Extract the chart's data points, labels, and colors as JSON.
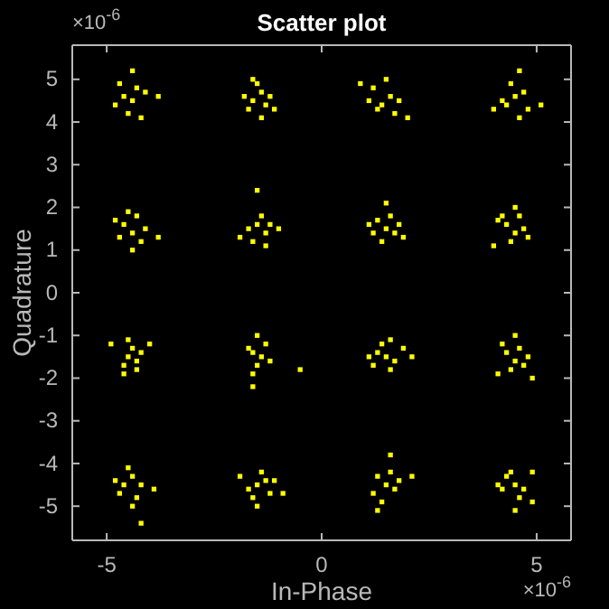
{
  "chart_data": {
    "type": "scatter",
    "title": "Scatter plot",
    "xlabel": "In-Phase",
    "ylabel": "Quadrature",
    "annotations": [
      "×10$^{-6}$",
      "×10$^{-6}$"
    ],
    "xlim": [
      -5.8,
      5.8
    ],
    "ylim": [
      -5.8,
      5.8
    ],
    "xticks": [
      -5,
      0,
      5
    ],
    "yticks": [
      -5,
      -4,
      -3,
      -2,
      -1,
      0,
      1,
      2,
      3,
      4,
      5
    ],
    "grid": false,
    "marker": "square",
    "series": [
      {
        "color": "#ffff00",
        "x": [
          -4.6,
          -4.4,
          -4.8,
          -4.3,
          -4.5,
          -4.1,
          -4.7,
          -4.2,
          -3.8,
          -4.4,
          -1.6,
          -1.4,
          -1.7,
          -1.3,
          -1.5,
          -1.2,
          -1.8,
          -1.4,
          -1.1,
          -1.6,
          1.6,
          1.4,
          1.8,
          1.2,
          1.7,
          1.5,
          1.1,
          2.0,
          0.9,
          1.3,
          4.5,
          4.3,
          4.7,
          4.4,
          4.2,
          4.8,
          4.6,
          5.1,
          4.6,
          4.0,
          -4.6,
          -4.4,
          -4.7,
          -4.3,
          -4.5,
          -4.2,
          -4.8,
          -4.1,
          -3.8,
          -4.4,
          -1.5,
          -1.3,
          -1.7,
          -1.4,
          -1.6,
          -1.2,
          -1.9,
          -1.0,
          -1.5,
          -1.3,
          1.5,
          1.3,
          1.7,
          1.6,
          1.2,
          1.8,
          1.4,
          1.5,
          1.9,
          1.1,
          4.5,
          4.3,
          4.7,
          4.4,
          4.6,
          4.2,
          4.8,
          4.1,
          4.5,
          4.0,
          -4.5,
          -4.4,
          -4.6,
          -4.3,
          -4.5,
          -4.2,
          -4.6,
          -4.0,
          -4.9,
          -4.3,
          -1.6,
          -1.4,
          -1.7,
          -1.5,
          -1.3,
          -1.6,
          -1.2,
          -1.5,
          -0.5,
          -1.6,
          1.5,
          1.3,
          1.7,
          1.4,
          1.6,
          1.1,
          1.9,
          1.2,
          2.1,
          1.6,
          4.5,
          4.3,
          4.6,
          4.4,
          4.7,
          4.2,
          4.8,
          4.5,
          4.1,
          4.9,
          -4.6,
          -4.4,
          -4.7,
          -4.5,
          -4.3,
          -4.8,
          -4.2,
          -4.4,
          -3.9,
          -4.2,
          -1.5,
          -1.3,
          -1.7,
          -1.4,
          -1.6,
          -1.2,
          -1.9,
          -1.1,
          -1.5,
          -0.9,
          1.5,
          1.3,
          1.7,
          1.6,
          1.2,
          1.8,
          1.4,
          1.6,
          2.1,
          1.3,
          4.5,
          4.3,
          4.7,
          4.4,
          4.6,
          4.2,
          4.9,
          4.5,
          4.1,
          4.9
        ],
        "values": [
          4.6,
          4.5,
          4.4,
          4.8,
          4.2,
          4.7,
          4.9,
          4.1,
          4.6,
          5.2,
          4.5,
          4.7,
          4.3,
          4.4,
          4.9,
          4.6,
          4.6,
          4.1,
          4.3,
          5.0,
          4.6,
          4.4,
          4.5,
          4.8,
          4.2,
          5.0,
          4.5,
          4.1,
          4.9,
          4.3,
          4.6,
          4.4,
          4.7,
          4.9,
          4.5,
          4.3,
          4.1,
          4.4,
          5.2,
          4.3,
          1.6,
          1.4,
          1.3,
          1.8,
          1.9,
          1.2,
          1.7,
          1.5,
          1.3,
          1.0,
          1.6,
          1.4,
          1.5,
          1.8,
          1.2,
          1.6,
          1.3,
          1.5,
          2.4,
          1.1,
          1.5,
          1.7,
          1.4,
          1.8,
          1.4,
          1.6,
          1.2,
          2.1,
          1.3,
          1.6,
          1.4,
          1.6,
          1.5,
          1.2,
          1.8,
          1.8,
          1.3,
          1.7,
          2.0,
          1.1,
          -1.5,
          -1.3,
          -1.7,
          -1.6,
          -1.1,
          -1.4,
          -1.9,
          -1.2,
          -1.2,
          -1.8,
          -1.4,
          -1.5,
          -1.3,
          -1.7,
          -1.2,
          -1.9,
          -1.6,
          -1.0,
          -1.8,
          -2.2,
          -1.5,
          -1.4,
          -1.6,
          -1.2,
          -1.8,
          -1.5,
          -1.3,
          -1.7,
          -1.5,
          -1.1,
          -1.6,
          -1.4,
          -1.3,
          -1.8,
          -1.7,
          -1.2,
          -1.5,
          -1.0,
          -1.9,
          -2.0,
          -4.5,
          -4.3,
          -4.7,
          -4.1,
          -4.8,
          -4.4,
          -4.5,
          -5.0,
          -4.6,
          -5.4,
          -4.5,
          -4.4,
          -4.6,
          -4.2,
          -4.8,
          -4.7,
          -4.3,
          -4.4,
          -5.0,
          -4.7,
          -4.5,
          -4.3,
          -4.6,
          -4.2,
          -4.7,
          -4.4,
          -4.9,
          -3.8,
          -4.3,
          -5.1,
          -4.5,
          -4.3,
          -4.6,
          -4.2,
          -4.8,
          -4.6,
          -4.2,
          -5.1,
          -4.5,
          -4.9
        ]
      }
    ]
  }
}
